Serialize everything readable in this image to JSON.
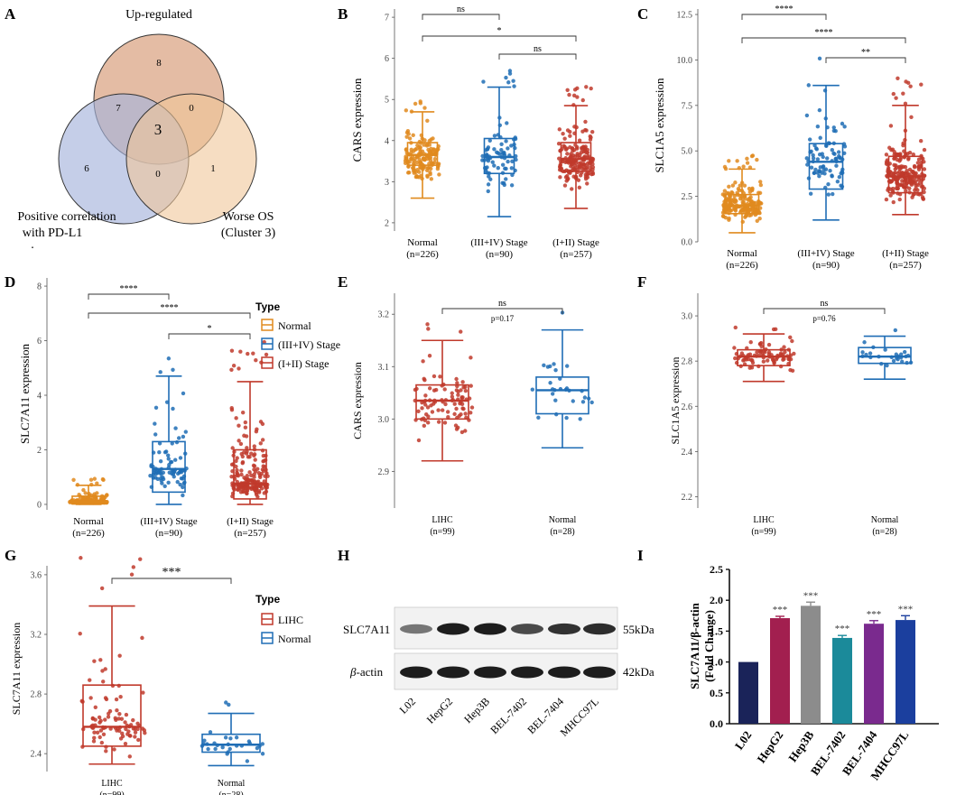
{
  "colors": {
    "normal": "#e08a1e",
    "stage_late": "#1f6db5",
    "stage_early": "#c0392b",
    "lihc": "#c0392b",
    "venn_up": "#d9a07e",
    "venn_pd": "#a6b4dc",
    "venn_os": "#f0c79a"
  },
  "panel_letters": [
    "A",
    "B",
    "C",
    "D",
    "E",
    "F",
    "G",
    "H",
    "I"
  ],
  "venn": {
    "labels": {
      "up": "Up-regulated",
      "pd_line1": "Positive correlation",
      "pd_line2": "with PD-L1",
      "os_line1": "Worse OS",
      "os_line2": "(Cluster 3)",
      "dot": "."
    },
    "counts": {
      "up_only": "8",
      "up_pd": "7",
      "up_os": "0",
      "all": "3",
      "pd_only": "6",
      "pd_os": "0",
      "os_only": "1"
    }
  },
  "group_labels": {
    "normal": "Normal",
    "normal_n": "(n=226)",
    "late": "(III+IV) Stage",
    "late_n": "(n=90)",
    "early": "(I+II) Stage",
    "early_n": "(n=257)",
    "lihc": "LIHC",
    "lihc_n": "(n=99)",
    "normal28_n": "(n=28)"
  },
  "legend_d": {
    "title": "Type",
    "items": [
      "Normal",
      "(III+IV) Stage",
      "(I+II) Stage"
    ]
  },
  "legend_g": {
    "title": "Type",
    "items": [
      "LIHC",
      "Normal"
    ]
  },
  "chart_data": [
    {
      "panel": "B",
      "type": "box",
      "ylabel": "CARS  expression",
      "ylim": [
        1.8,
        7.2
      ],
      "ticks": [
        "2",
        "3",
        "4",
        "5",
        "6",
        "7"
      ],
      "tick_values": [
        2,
        3,
        4,
        5,
        6,
        7
      ],
      "groups": [
        {
          "name": "Normal",
          "n": 226,
          "min": 2.6,
          "q1": 3.4,
          "median": 3.65,
          "q3": 3.95,
          "max": 4.7
        },
        {
          "name": "(III+IV) Stage",
          "n": 90,
          "min": 2.15,
          "q1": 3.2,
          "median": 3.6,
          "q3": 4.05,
          "max": 5.3
        },
        {
          "name": "(I+II) Stage",
          "n": 257,
          "min": 2.35,
          "q1": 3.25,
          "median": 3.55,
          "q3": 3.95,
          "max": 4.85
        }
      ],
      "significance": [
        {
          "label": "ns",
          "pair": [
            0,
            1
          ]
        },
        {
          "label": "*",
          "pair": [
            0,
            2
          ]
        },
        {
          "label": "ns",
          "pair": [
            1,
            2
          ]
        }
      ]
    },
    {
      "panel": "C",
      "type": "box",
      "ylabel": "SLC1A5  expression",
      "ylim": [
        0,
        12.8
      ],
      "ticks": [
        "0.0",
        "2.5",
        "5.0",
        "7.5",
        "10.0",
        "12.5"
      ],
      "tick_values": [
        0,
        2.5,
        5,
        7.5,
        10,
        12.5
      ],
      "groups": [
        {
          "name": "Normal",
          "n": 226,
          "min": 0.5,
          "q1": 1.55,
          "median": 2.0,
          "q3": 2.6,
          "max": 4.0
        },
        {
          "name": "(III+IV) Stage",
          "n": 90,
          "min": 1.2,
          "q1": 2.9,
          "median": 4.4,
          "q3": 5.4,
          "max": 8.6
        },
        {
          "name": "(I+II) Stage",
          "n": 257,
          "min": 1.5,
          "q1": 2.7,
          "median": 3.6,
          "q3": 4.7,
          "max": 7.5
        }
      ],
      "significance": [
        {
          "label": "****",
          "pair": [
            0,
            1
          ]
        },
        {
          "label": "****",
          "pair": [
            0,
            2
          ]
        },
        {
          "label": "**",
          "pair": [
            1,
            2
          ]
        }
      ]
    },
    {
      "panel": "D",
      "type": "box",
      "ylabel": "SLC7A11  expression",
      "ylim": [
        -0.2,
        8.3
      ],
      "ticks": [
        "0",
        "2",
        "4",
        "6",
        "8"
      ],
      "tick_values": [
        0,
        2,
        4,
        6,
        8
      ],
      "groups": [
        {
          "name": "Normal",
          "n": 226,
          "min": 0.0,
          "q1": 0.02,
          "median": 0.1,
          "q3": 0.3,
          "max": 0.7
        },
        {
          "name": "(III+IV) Stage",
          "n": 90,
          "min": 0.0,
          "q1": 0.45,
          "median": 1.3,
          "q3": 2.3,
          "max": 4.7
        },
        {
          "name": "(I+II) Stage",
          "n": 257,
          "min": 0.0,
          "q1": 0.2,
          "median": 0.75,
          "q3": 2.0,
          "max": 4.5
        }
      ],
      "significance": [
        {
          "label": "****",
          "pair": [
            0,
            1
          ]
        },
        {
          "label": "****",
          "pair": [
            0,
            2
          ]
        },
        {
          "label": "*",
          "pair": [
            1,
            2
          ]
        }
      ]
    },
    {
      "panel": "E",
      "type": "box",
      "ylabel": "CARS expression",
      "ylim": [
        2.83,
        3.24
      ],
      "ticks": [
        "2.9",
        "3.0",
        "3.1",
        "3.2"
      ],
      "tick_values": [
        2.9,
        3.0,
        3.1,
        3.2
      ],
      "groups": [
        {
          "name": "LIHC",
          "n": 99,
          "min": 2.92,
          "q1": 3.0,
          "median": 3.035,
          "q3": 3.065,
          "max": 3.15
        },
        {
          "name": "Normal",
          "n": 28,
          "min": 2.945,
          "q1": 3.01,
          "median": 3.055,
          "q3": 3.08,
          "max": 3.17
        }
      ],
      "significance": [
        {
          "label": "ns",
          "pair": [
            0,
            1
          ]
        }
      ],
      "pvalue": "p=0.17"
    },
    {
      "panel": "F",
      "type": "box",
      "ylabel": "SLC1A5 expression",
      "ylim": [
        2.15,
        3.1
      ],
      "ticks": [
        "2.2",
        "2.4",
        "2.6",
        "2.8",
        "3.0"
      ],
      "tick_values": [
        2.2,
        2.4,
        2.6,
        2.8,
        3.0
      ],
      "groups": [
        {
          "name": "LIHC",
          "n": 99,
          "min": 2.71,
          "q1": 2.78,
          "median": 2.82,
          "q3": 2.85,
          "max": 2.92
        },
        {
          "name": "Normal",
          "n": 28,
          "min": 2.72,
          "q1": 2.79,
          "median": 2.82,
          "q3": 2.86,
          "max": 2.91
        }
      ],
      "significance": [
        {
          "label": "ns",
          "pair": [
            0,
            1
          ]
        }
      ],
      "pvalue": "p=0.76"
    },
    {
      "panel": "G",
      "type": "box",
      "ylabel": "SLC7A11 expression",
      "ylim": [
        2.28,
        3.66
      ],
      "ticks": [
        "2.4",
        "2.8",
        "3.2",
        "3.6"
      ],
      "tick_values": [
        2.4,
        2.8,
        3.2,
        3.6
      ],
      "groups": [
        {
          "name": "LIHC",
          "n": 99,
          "min": 2.33,
          "q1": 2.45,
          "median": 2.58,
          "q3": 2.86,
          "max": 3.39
        },
        {
          "name": "Normal",
          "n": 28,
          "min": 2.32,
          "q1": 2.41,
          "median": 2.46,
          "q3": 2.53,
          "max": 2.67
        }
      ],
      "significance": [
        {
          "label": "***",
          "pair": [
            0,
            1
          ]
        }
      ]
    },
    {
      "panel": "I",
      "type": "bar",
      "ylabel_line1": "SLC7A11/β-actin",
      "ylabel_line2": "(Fold Change)",
      "ylim": [
        0,
        2.5
      ],
      "ticks": [
        "0.0",
        "0.5",
        "1.0",
        "1.5",
        "2.0",
        "2.5"
      ],
      "tick_values": [
        0,
        0.5,
        1,
        1.5,
        2,
        2.5
      ],
      "categories": [
        "L02",
        "HepG2",
        "Hep3B",
        "BEL-7402",
        "BEL-7404",
        "MHCC97L"
      ],
      "values": [
        1.0,
        1.71,
        1.91,
        1.39,
        1.62,
        1.68
      ],
      "errors": [
        0.0,
        0.03,
        0.06,
        0.04,
        0.05,
        0.07
      ],
      "bar_colors": [
        "#1a2359",
        "#a21f4f",
        "#8c8c8c",
        "#1b8a9a",
        "#7a2a8e",
        "#1b3f9e"
      ],
      "stars": [
        "",
        "***",
        "***",
        "***",
        "***",
        "***"
      ]
    }
  ],
  "blot": {
    "rows": [
      {
        "label": "SLC7A11",
        "kda": "55kDa"
      },
      {
        "label_prefix": "β",
        "label_suffix": "-actin",
        "kda": "42kDa"
      }
    ],
    "lanes": [
      "L02",
      "HepG2",
      "Hep3B",
      "BEL-7402",
      "BEL-7404",
      "MHCC97L"
    ],
    "intensity_row1": [
      0.55,
      0.95,
      0.95,
      0.75,
      0.85,
      0.88
    ],
    "intensity_row2": [
      0.95,
      0.95,
      0.95,
      0.95,
      0.95,
      0.95
    ]
  }
}
